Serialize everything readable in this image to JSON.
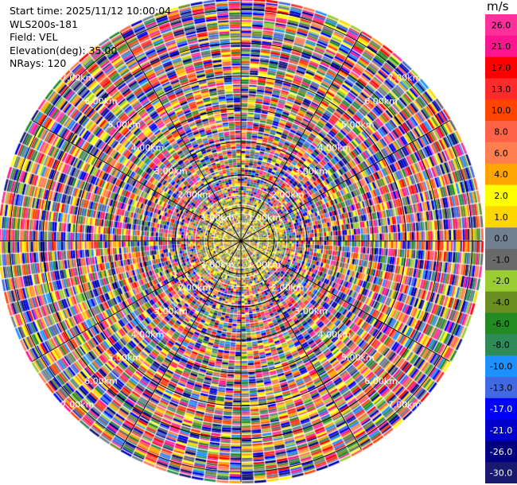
{
  "info": {
    "start_time": "Start time: 2025/11/12 10:00:04",
    "instrument": "WLS200s-181",
    "field": "Field: VEL",
    "elevation": "Elevation(deg): 35.00",
    "nrays": "NRays: 120"
  },
  "colorbar": {
    "unit": "m/s",
    "levels": [
      {
        "label": "26.0",
        "color": "#ff2f9b"
      },
      {
        "label": "21.0",
        "color": "#ff148f"
      },
      {
        "label": "17.0",
        "color": "#ff0000"
      },
      {
        "label": "13.0",
        "color": "#ff2a2a"
      },
      {
        "label": "10.0",
        "color": "#ff4500"
      },
      {
        "label": "8.0",
        "color": "#ff6347"
      },
      {
        "label": "6.0",
        "color": "#ff7f50"
      },
      {
        "label": "4.0",
        "color": "#ffa500"
      },
      {
        "label": "2.0",
        "color": "#ffff00"
      },
      {
        "label": "1.0",
        "color": "#ffd700"
      },
      {
        "label": "0.0",
        "color": "#708090"
      },
      {
        "label": "-1.0",
        "color": "#696969"
      },
      {
        "label": "-2.0",
        "color": "#9acd32"
      },
      {
        "label": "-4.0",
        "color": "#6b8e23"
      },
      {
        "label": "-6.0",
        "color": "#228b22"
      },
      {
        "label": "-8.0",
        "color": "#2e8b57"
      },
      {
        "label": "-10.0",
        "color": "#1e90ff"
      },
      {
        "label": "-13.0",
        "color": "#4169e1"
      },
      {
        "label": "-17.0",
        "color": "#0000ff"
      },
      {
        "label": "-21.0",
        "color": "#0000cd"
      },
      {
        "label": "-26.0",
        "color": "#000080"
      },
      {
        "label": "-30.0",
        "color": "#191970"
      }
    ]
  },
  "chart_data": {
    "type": "heatmap",
    "projection": "polar-ppi",
    "field": "VEL",
    "unit": "m/s",
    "nrays": 120,
    "elevation_deg": 35.0,
    "value_range": [
      -30.0,
      26.0
    ],
    "rings": [
      {
        "label": "1.00km",
        "range_km": 1
      },
      {
        "label": "2.00km",
        "range_km": 2
      },
      {
        "label": "3.00km",
        "range_km": 3
      },
      {
        "label": "4.00km",
        "range_km": 4
      },
      {
        "label": "5.00km",
        "range_km": 5
      },
      {
        "label": "6.00km",
        "range_km": 6
      },
      {
        "label": "7.00km",
        "range_km": 7
      }
    ],
    "max_range_km": 7.3,
    "grid": true,
    "colorbar_position": "right"
  }
}
